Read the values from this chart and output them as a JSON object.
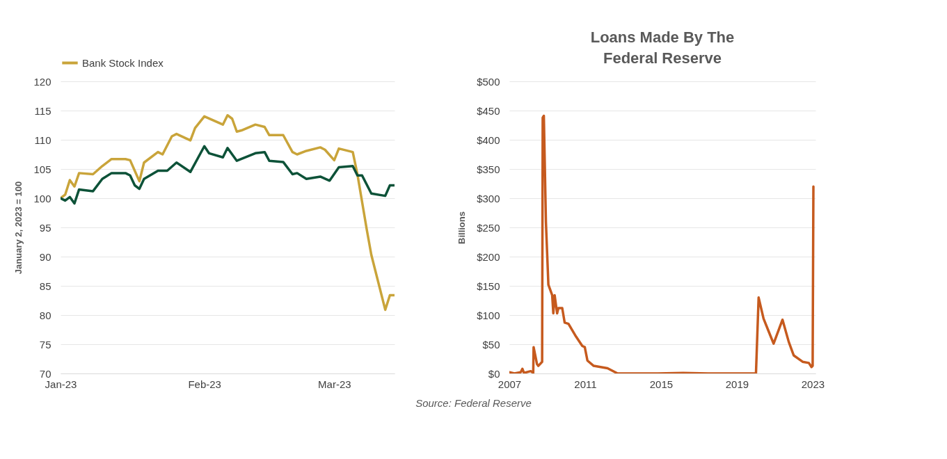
{
  "chart_data": [
    {
      "type": "line",
      "ylabel": "January 2, 2023 = 100",
      "legend": "top",
      "grid": "y",
      "xlim": [
        "2023-01-01",
        "2023-03-14"
      ],
      "xticks": [
        {
          "value": "2023-01-01",
          "label": "Jan-23"
        },
        {
          "value": "2023-02-01",
          "label": "Feb-23"
        },
        {
          "value": "2023-03-01",
          "label": "Mar-23"
        }
      ],
      "ylim": [
        70,
        120
      ],
      "yticks": [
        70,
        75,
        80,
        85,
        90,
        95,
        100,
        105,
        110,
        115,
        120
      ],
      "series": [
        {
          "name": "Bank Stock Index",
          "color": "#c9a43a",
          "x": [
            "2023-01-01",
            "2023-01-02",
            "2023-01-03",
            "2023-01-04",
            "2023-01-05",
            "2023-01-08",
            "2023-01-10",
            "2023-01-12",
            "2023-01-15",
            "2023-01-16",
            "2023-01-18",
            "2023-01-19",
            "2023-01-22",
            "2023-01-23",
            "2023-01-25",
            "2023-01-26",
            "2023-01-29",
            "2023-01-30",
            "2023-02-01",
            "2023-02-05",
            "2023-02-06",
            "2023-02-07",
            "2023-02-08",
            "2023-02-09",
            "2023-02-12",
            "2023-02-14",
            "2023-02-15",
            "2023-02-18",
            "2023-02-20",
            "2023-02-21",
            "2023-02-23",
            "2023-02-26",
            "2023-02-27",
            "2023-03-01",
            "2023-03-02",
            "2023-03-05",
            "2023-03-06",
            "2023-03-08",
            "2023-03-09",
            "2023-03-12",
            "2023-03-13",
            "2023-03-14"
          ],
          "values": [
            100,
            100.6,
            103.1,
            102,
            104.3,
            104.1,
            105.5,
            106.7,
            106.7,
            106.5,
            102.9,
            106.1,
            107.9,
            107.5,
            110.6,
            111,
            109.9,
            112,
            114,
            112.6,
            114.2,
            113.6,
            111.4,
            111.6,
            112.6,
            112.2,
            110.8,
            110.8,
            107.9,
            107.5,
            108.1,
            108.7,
            108.3,
            106.5,
            108.5,
            107.9,
            104.1,
            94.7,
            90.3,
            80.9,
            83.4,
            83.4
          ]
        },
        {
          "color": "#0d5238",
          "x": [
            "2023-01-01",
            "2023-01-02",
            "2023-01-03",
            "2023-01-04",
            "2023-01-05",
            "2023-01-08",
            "2023-01-10",
            "2023-01-12",
            "2023-01-15",
            "2023-01-16",
            "2023-01-17",
            "2023-01-18",
            "2023-01-19",
            "2023-01-22",
            "2023-01-24",
            "2023-01-26",
            "2023-01-29",
            "2023-02-01",
            "2023-02-02",
            "2023-02-05",
            "2023-02-06",
            "2023-02-08",
            "2023-02-12",
            "2023-02-14",
            "2023-02-15",
            "2023-02-18",
            "2023-02-20",
            "2023-02-21",
            "2023-02-23",
            "2023-02-26",
            "2023-02-28",
            "2023-03-02",
            "2023-03-05",
            "2023-03-06",
            "2023-03-07",
            "2023-03-09",
            "2023-03-12",
            "2023-03-13",
            "2023-03-14"
          ],
          "values": [
            100,
            99.6,
            100.2,
            99.1,
            101.5,
            101.2,
            103.3,
            104.3,
            104.3,
            103.9,
            102.2,
            101.6,
            103.3,
            104.7,
            104.7,
            106.1,
            104.5,
            108.9,
            107.7,
            107,
            108.6,
            106.4,
            107.7,
            107.9,
            106.4,
            106.2,
            104.1,
            104.3,
            103.3,
            103.7,
            103,
            105.3,
            105.5,
            103.9,
            103.9,
            100.8,
            100.4,
            102.2,
            102.2
          ]
        }
      ]
    },
    {
      "type": "line",
      "title": "Loans Made By The\nFederal Reserve",
      "ylabel": "Billions",
      "grid": "y",
      "xlim": [
        2007,
        2023.15
      ],
      "xticks": [
        2007,
        2011,
        2015,
        2019,
        2023
      ],
      "ylim": [
        0,
        500
      ],
      "yticks": [
        {
          "value": 0,
          "label": "$0"
        },
        {
          "value": 50,
          "label": "$50"
        },
        {
          "value": 100,
          "label": "$100"
        },
        {
          "value": 150,
          "label": "$150"
        },
        {
          "value": 200,
          "label": "$200"
        },
        {
          "value": 250,
          "label": "$250"
        },
        {
          "value": 300,
          "label": "$300"
        },
        {
          "value": 350,
          "label": "$350"
        },
        {
          "value": 400,
          "label": "$400"
        },
        {
          "value": 450,
          "label": "$450"
        },
        {
          "value": 500,
          "label": "$500"
        }
      ],
      "annotations": [
        "Source: Federal Reserve"
      ],
      "series": [
        {
          "color": "#c65a1e",
          "x": [
            2007.0,
            2007.27,
            2007.6,
            2007.69,
            2007.77,
            2008.13,
            2008.26,
            2008.28,
            2008.46,
            2008.53,
            2008.73,
            2008.76,
            2008.82,
            2008.93,
            2009.06,
            2009.26,
            2009.32,
            2009.39,
            2009.52,
            2009.59,
            2009.79,
            2009.92,
            2010.12,
            2010.52,
            2010.85,
            2010.98,
            2011.12,
            2011.45,
            2012.18,
            2012.71,
            2014.84,
            2016.16,
            2017.49,
            2020.01,
            2020.15,
            2020.41,
            2020.68,
            2020.94,
            2021.41,
            2021.74,
            2022.0,
            2022.47,
            2022.8,
            2022.94,
            2023.0,
            2023.04
          ],
          "values": [
            2,
            0,
            2,
            8,
            1,
            4,
            1,
            45,
            16,
            13,
            20,
            438,
            441,
            259,
            152,
            134,
            103,
            134,
            103,
            112,
            112,
            87,
            85,
            63,
            47,
            45,
            22,
            13,
            9,
            0,
            0,
            1,
            0,
            0,
            130,
            94,
            72,
            51,
            92,
            54,
            31,
            20,
            18,
            11,
            13,
            320
          ]
        }
      ]
    }
  ]
}
